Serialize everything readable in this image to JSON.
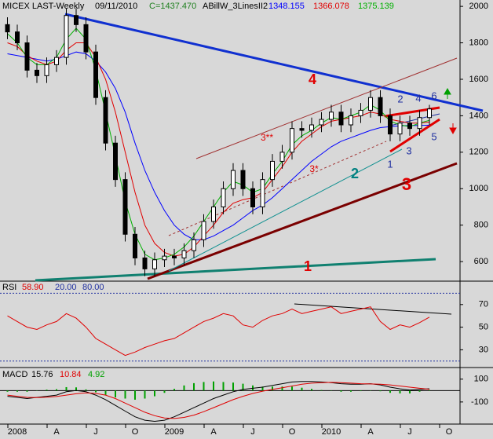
{
  "chart_data": [
    {
      "type": "candlestick",
      "title": "MICEX LAST-Weekly",
      "date": "09/11/2010",
      "last_label": "C=1437.470",
      "indicator": "ABillW_3LinesII2",
      "open": [
        1900,
        1860,
        1800,
        1650,
        1620,
        1680,
        1720,
        1950,
        1900,
        1750,
        1500,
        1250,
        1050,
        750,
        620,
        560,
        610,
        630,
        620,
        660,
        720,
        820,
        900,
        1000,
        1100,
        1000,
        900,
        1050,
        1150,
        1200,
        1330,
        1320,
        1350,
        1380,
        1420,
        1350,
        1400,
        1430,
        1500,
        1400,
        1300,
        1360,
        1330,
        1390,
        null,
        null
      ],
      "high": [
        1940,
        1900,
        1840,
        1690,
        1720,
        1760,
        1990,
        1990,
        1940,
        1790,
        1540,
        1290,
        1090,
        790,
        660,
        650,
        670,
        670,
        700,
        760,
        860,
        940,
        1040,
        1140,
        1140,
        1040,
        1090,
        1190,
        1240,
        1370,
        1370,
        1390,
        1420,
        1460,
        1460,
        1440,
        1470,
        1540,
        1540,
        1440,
        1400,
        1400,
        1430,
        1460,
        null,
        null
      ],
      "low": [
        1820,
        1760,
        1610,
        1580,
        1580,
        1640,
        1680,
        1860,
        1710,
        1460,
        1210,
        1010,
        710,
        580,
        520,
        520,
        570,
        580,
        580,
        620,
        680,
        780,
        860,
        960,
        960,
        860,
        860,
        1010,
        1110,
        1160,
        1280,
        1280,
        1310,
        1340,
        1310,
        1310,
        1360,
        1390,
        1360,
        1260,
        1260,
        1290,
        1290,
        1350,
        null,
        null
      ],
      "close": [
        1860,
        1800,
        1650,
        1620,
        1680,
        1720,
        1950,
        1900,
        1750,
        1500,
        1250,
        1050,
        750,
        620,
        560,
        610,
        630,
        620,
        660,
        720,
        820,
        900,
        1000,
        1100,
        1000,
        900,
        1050,
        1150,
        1200,
        1330,
        1320,
        1350,
        1380,
        1420,
        1350,
        1400,
        1430,
        1500,
        1400,
        1300,
        1360,
        1330,
        1390,
        1437.47,
        null,
        null
      ],
      "overlays": [
        {
          "color": "#0000ff",
          "label": "1348.155",
          "values": [
            1740,
            1730,
            1720,
            1710,
            1700,
            1710,
            1730,
            1750,
            1740,
            1700,
            1640,
            1550,
            1420,
            1250,
            1100,
            980,
            880,
            800,
            750,
            720,
            720,
            740,
            770,
            800,
            840,
            880,
            910,
            950,
            1000,
            1050,
            1100,
            1150,
            1190,
            1230,
            1260,
            1280,
            1300,
            1320,
            1335,
            1340,
            1345,
            1346,
            1347,
            1348.155,
            null,
            null
          ]
        },
        {
          "color": "#e00000",
          "label": "1366.078",
          "values": [
            1800,
            1780,
            1730,
            1700,
            1680,
            1700,
            1760,
            1800,
            1800,
            1720,
            1600,
            1420,
            1200,
            980,
            800,
            700,
            650,
            630,
            640,
            680,
            740,
            800,
            870,
            920,
            940,
            950,
            980,
            1050,
            1120,
            1200,
            1260,
            1300,
            1340,
            1370,
            1380,
            1390,
            1400,
            1420,
            1410,
            1380,
            1370,
            1360,
            1360,
            1366.078,
            null,
            null
          ]
        },
        {
          "color": "#00b000",
          "label": "1375.139",
          "values": [
            1850,
            1800,
            1720,
            1680,
            1680,
            1720,
            1820,
            1880,
            1820,
            1650,
            1420,
            1180,
            930,
            750,
            640,
            610,
            620,
            640,
            680,
            740,
            820,
            900,
            980,
            1040,
            1020,
            980,
            1000,
            1080,
            1150,
            1240,
            1290,
            1320,
            1360,
            1390,
            1380,
            1400,
            1420,
            1460,
            1430,
            1370,
            1350,
            1340,
            1360,
            1375.139,
            null,
            null
          ]
        }
      ],
      "ylim": [
        497,
        2035
      ],
      "yticks": [
        600,
        800,
        1000,
        1200,
        1400,
        1600,
        1800,
        2000
      ],
      "annotations": [
        {
          "text": "4",
          "color": "#e00000"
        },
        {
          "text": "1",
          "color": "#e00000"
        },
        {
          "text": "3",
          "color": "#e00000"
        },
        {
          "text": "2",
          "color": "#008080"
        },
        {
          "text": "3**",
          "color": "#e00000"
        },
        {
          "text": "3*",
          "color": "#e00000"
        },
        {
          "text": "1",
          "color": "#2030a0"
        },
        {
          "text": "2",
          "color": "#2030a0"
        },
        {
          "text": "3",
          "color": "#2030a0"
        },
        {
          "text": "4",
          "color": "#2030a0"
        },
        {
          "text": "5",
          "color": "#2030a0"
        },
        {
          "text": "6",
          "color": "#2030a0"
        }
      ]
    },
    {
      "type": "line",
      "title": "RSI",
      "last_label": "58.90",
      "color": "#e00000",
      "values": [
        60,
        55,
        50,
        48,
        52,
        55,
        62,
        58,
        50,
        40,
        35,
        30,
        25,
        28,
        32,
        35,
        38,
        40,
        45,
        50,
        55,
        58,
        62,
        60,
        52,
        50,
        56,
        60,
        62,
        66,
        62,
        64,
        66,
        68,
        62,
        64,
        66,
        68,
        55,
        48,
        52,
        50,
        54,
        58.9,
        null,
        null
      ],
      "levels": [
        {
          "value": 20,
          "label": "20.00"
        },
        {
          "value": 80,
          "label": "80.00"
        }
      ],
      "ylim": [
        15,
        90
      ],
      "yticks": [
        30,
        50,
        70
      ]
    },
    {
      "type": "macd",
      "title": "MACD",
      "series": [
        {
          "label": "15.76",
          "color": "#000000",
          "values": [
            -50,
            -60,
            -70,
            -60,
            -50,
            -40,
            -10,
            0,
            -10,
            -40,
            -80,
            -130,
            -180,
            -230,
            -260,
            -270,
            -260,
            -230,
            -190,
            -150,
            -110,
            -70,
            -40,
            -10,
            10,
            20,
            30,
            45,
            60,
            75,
            80,
            80,
            75,
            70,
            60,
            55,
            55,
            60,
            50,
            30,
            15,
            5,
            10,
            15.76,
            null,
            null
          ]
        },
        {
          "label": "10.84",
          "color": "#e00000",
          "values": [
            -40,
            -50,
            -60,
            -62,
            -58,
            -52,
            -40,
            -28,
            -20,
            -25,
            -40,
            -70,
            -110,
            -150,
            -190,
            -220,
            -240,
            -245,
            -235,
            -215,
            -185,
            -150,
            -115,
            -80,
            -50,
            -25,
            -5,
            10,
            25,
            40,
            55,
            65,
            70,
            72,
            70,
            65,
            60,
            58,
            56,
            50,
            40,
            30,
            20,
            10.84,
            null,
            null
          ]
        }
      ],
      "histogram": {
        "label": "4.92",
        "color": "#00a000",
        "values": [
          -10,
          -10,
          -10,
          2,
          8,
          12,
          30,
          28,
          10,
          -15,
          -40,
          -60,
          -70,
          -80,
          -70,
          -50,
          -20,
          15,
          45,
          65,
          75,
          80,
          75,
          70,
          60,
          45,
          35,
          35,
          35,
          35,
          25,
          15,
          5,
          -2,
          -10,
          -10,
          -5,
          2,
          -6,
          -20,
          -25,
          -25,
          -10,
          4.92,
          null,
          null
        ]
      },
      "categories": [
        null,
        "2008",
        null,
        null,
        null,
        "A",
        null,
        null,
        null,
        "J",
        null,
        null,
        null,
        "O",
        null,
        null,
        null,
        "2009",
        null,
        null,
        null,
        "A",
        null,
        null,
        null,
        "J",
        null,
        null,
        null,
        "O",
        null,
        null,
        null,
        "2010",
        null,
        null,
        null,
        "A",
        null,
        null,
        null,
        "J",
        null,
        null,
        null,
        "O"
      ],
      "ylim": [
        -280,
        195
      ],
      "yticks": [
        -100,
        100
      ]
    }
  ]
}
